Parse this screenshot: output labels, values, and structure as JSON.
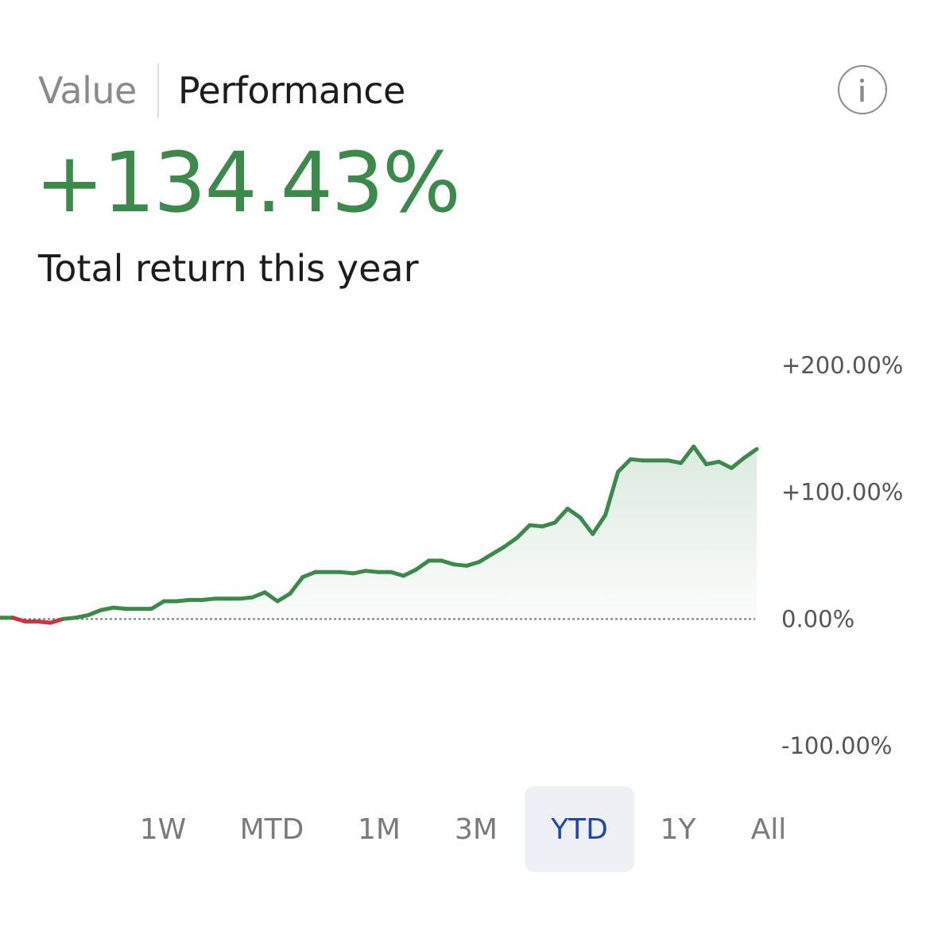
{
  "tabs": [
    {
      "label": "Value",
      "active": false
    },
    {
      "label": "Performance",
      "active": true
    }
  ],
  "info_icon": "info-circle-icon",
  "headline": {
    "value": "+134.43%",
    "caption": "Total return this year"
  },
  "colors": {
    "positive": "#3b8a4b",
    "negative": "#c8373a",
    "selected_range": "#2248a6",
    "selected_range_bg": "#eef0f5",
    "inactive_text": "#8a8a8a"
  },
  "chart_data": {
    "type": "area",
    "y_axis_tick_labels": [
      "+200.00%",
      "+100.00%",
      "0.00%",
      "-100.00%"
    ],
    "y_ticks": [
      200,
      100,
      0,
      -100
    ],
    "ylim": [
      -100,
      200
    ],
    "baseline": 0,
    "baseline_style": "dotted",
    "grid": false,
    "series": [
      {
        "values": [
          1,
          1,
          -2,
          -2,
          -3,
          0,
          1,
          3,
          7,
          9,
          8,
          8,
          8,
          14,
          14,
          15,
          15,
          16,
          16,
          16,
          17,
          21,
          14,
          20,
          33,
          37,
          37,
          37,
          36,
          38,
          37,
          37,
          34,
          39,
          46,
          46,
          43,
          42,
          45,
          51,
          57,
          64,
          74,
          73,
          76,
          87,
          80,
          67,
          82,
          116,
          126,
          125,
          125,
          125,
          123,
          136,
          122,
          124,
          119,
          127,
          134
        ]
      }
    ]
  },
  "ranges": [
    {
      "label": "1W",
      "selected": false
    },
    {
      "label": "MTD",
      "selected": false
    },
    {
      "label": "1M",
      "selected": false
    },
    {
      "label": "3M",
      "selected": false
    },
    {
      "label": "YTD",
      "selected": true
    },
    {
      "label": "1Y",
      "selected": false
    },
    {
      "label": "All",
      "selected": false
    }
  ]
}
